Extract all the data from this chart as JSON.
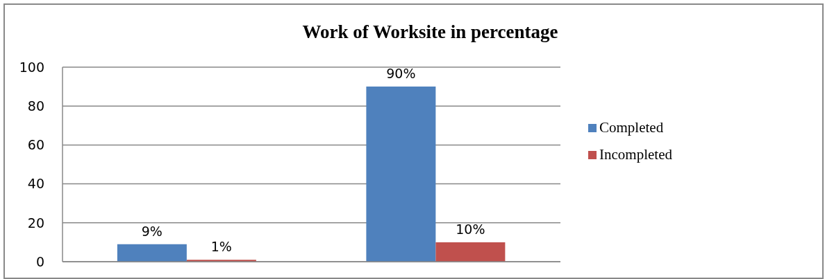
{
  "chart_data": {
    "type": "bar",
    "title": "Work of Worksite in percentage",
    "categories": [
      null,
      null
    ],
    "series": [
      {
        "name": "Completed",
        "color": "#4f81bd",
        "values": [
          9,
          90
        ],
        "value_labels": [
          "9%",
          "90%"
        ]
      },
      {
        "name": "Incompleted",
        "color": "#c0504d",
        "values": [
          1,
          10
        ],
        "value_labels": [
          "1%",
          "10%"
        ]
      }
    ],
    "ylim": [
      0,
      100
    ],
    "yticks": [
      0,
      20,
      40,
      60,
      80,
      100
    ],
    "grid": "y",
    "legend": "right"
  }
}
